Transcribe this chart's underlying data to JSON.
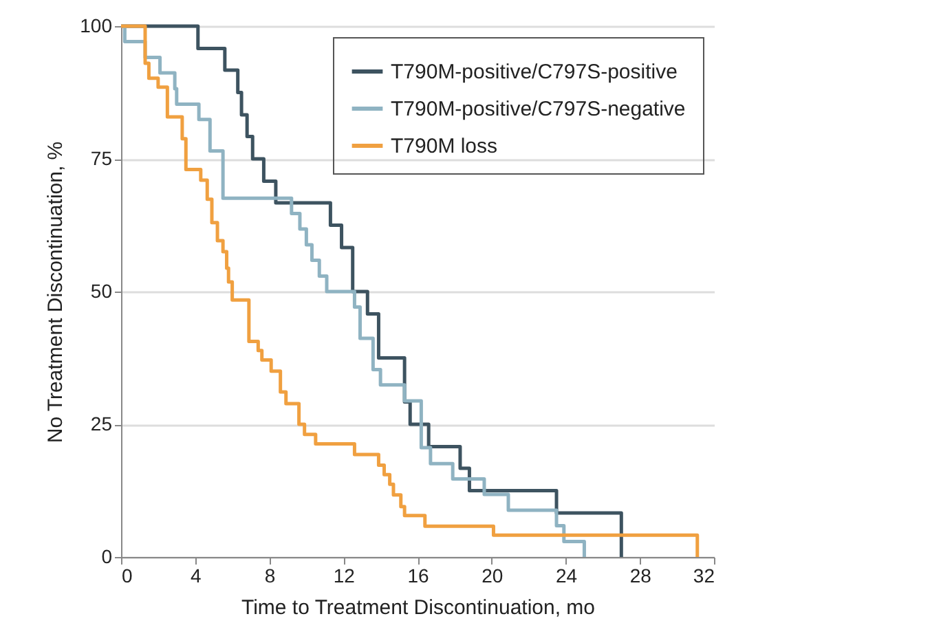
{
  "chart_data": {
    "type": "step",
    "xlabel": "Time to Treatment Discontinuation, mo",
    "ylabel": "No Treatment Discontinuation, %",
    "xlim": [
      0,
      32
    ],
    "xticks": [
      0,
      4,
      8,
      12,
      16,
      20,
      24,
      28,
      32
    ],
    "ylim": [
      0,
      100
    ],
    "yticks": [
      0,
      25,
      50,
      75,
      100
    ],
    "grid": "y",
    "legend": "top right",
    "marker": "none",
    "line_style": "solid",
    "series": [
      {
        "name": "T790M-positive/C797S-positive",
        "color": "#3d5360",
        "x": [
          0,
          4.15,
          5.6,
          6.3,
          6.5,
          6.8,
          7.1,
          7.7,
          8.35,
          11.3,
          11.9,
          12.5,
          13.3,
          13.9,
          15.3,
          15.6,
          16.6,
          18.3,
          18.8,
          23.5,
          27.0
        ],
        "values": [
          100,
          95.8,
          91.7,
          87.5,
          83.3,
          79.2,
          75,
          70.8,
          66.7,
          62.5,
          58.3,
          50,
          45.8,
          37.5,
          29.2,
          25,
          20.8,
          16.7,
          12.5,
          8.3,
          0
        ]
      },
      {
        "name": "T790M-positive/C797S-negative",
        "color": "#8fb3c2",
        "x": [
          0,
          0.2,
          1.3,
          2.1,
          2.9,
          3.0,
          4.2,
          4.8,
          5.5,
          9.2,
          9.65,
          10.0,
          10.3,
          10.7,
          11.1,
          12.6,
          12.9,
          13.6,
          14.0,
          15.3,
          16.2,
          16.7,
          17.9,
          19.6,
          20.9,
          23.5,
          23.9,
          25.0
        ],
        "values": [
          100,
          97.1,
          94.1,
          91.2,
          88.2,
          85.3,
          82.4,
          76.5,
          67.6,
          64.7,
          61.8,
          58.8,
          55.9,
          52.9,
          50,
          47.1,
          41.2,
          35.3,
          32.4,
          29.4,
          20.6,
          17.6,
          14.7,
          11.8,
          8.8,
          5.9,
          2.9,
          0
        ]
      },
      {
        "name": "T790M loss",
        "color": "#f0a040",
        "x": [
          0,
          1.3,
          1.5,
          2.0,
          2.5,
          3.3,
          3.5,
          4.3,
          4.65,
          4.9,
          5.2,
          5.5,
          5.7,
          5.8,
          6.0,
          6.9,
          7.4,
          7.6,
          8.1,
          8.6,
          8.9,
          9.6,
          9.9,
          10.5,
          12.6,
          13.9,
          14.2,
          14.5,
          14.7,
          15.1,
          15.3,
          16.4,
          20.1,
          31.1
        ],
        "values": [
          100,
          93,
          90.2,
          88.5,
          82.9,
          78.8,
          73,
          71,
          67.4,
          63,
          59.6,
          57.5,
          54.4,
          51.8,
          48.4,
          40.6,
          38.9,
          37.1,
          35,
          31.1,
          28.9,
          25,
          23.1,
          21.3,
          19.3,
          17.3,
          15.5,
          13.7,
          11.7,
          9.5,
          7.8,
          5.8,
          4.1,
          0
        ]
      }
    ]
  }
}
